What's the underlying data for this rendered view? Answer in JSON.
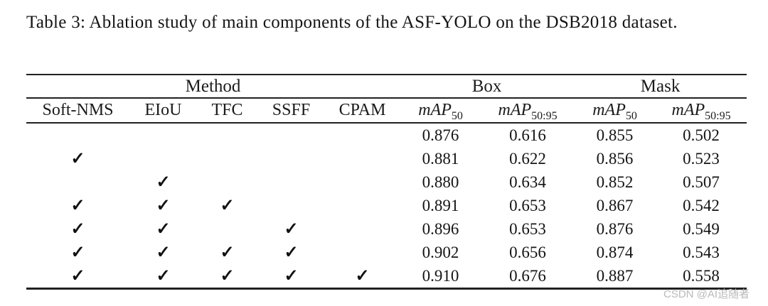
{
  "page": {
    "caption": "Table 3: Ablation study of main components of the ASF-YOLO on the DSB2018 dataset.",
    "watermark": "CSDN @AI追随者"
  },
  "table": {
    "group_headers": [
      {
        "label": "Method",
        "span": 5
      },
      {
        "label": "Box",
        "span": 2
      },
      {
        "label": "Mask",
        "span": 2
      }
    ],
    "method_columns": [
      "Soft-NMS",
      "EIoU",
      "TFC",
      "SSFF",
      "CPAM"
    ],
    "metric_headers": [
      {
        "base": "mAP",
        "sub": "50"
      },
      {
        "base": "mAP",
        "sub": "50:95"
      },
      {
        "base": "mAP",
        "sub": "50"
      },
      {
        "base": "mAP",
        "sub": "50:95"
      }
    ],
    "check_symbol": "✓",
    "rows": [
      {
        "checks": [
          false,
          false,
          false,
          false,
          false
        ],
        "values": [
          "0.876",
          "0.616",
          "0.855",
          "0.502"
        ]
      },
      {
        "checks": [
          true,
          false,
          false,
          false,
          false
        ],
        "values": [
          "0.881",
          "0.622",
          "0.856",
          "0.523"
        ]
      },
      {
        "checks": [
          false,
          true,
          false,
          false,
          false
        ],
        "values": [
          "0.880",
          "0.634",
          "0.852",
          "0.507"
        ]
      },
      {
        "checks": [
          true,
          true,
          true,
          false,
          false
        ],
        "values": [
          "0.891",
          "0.653",
          "0.867",
          "0.542"
        ]
      },
      {
        "checks": [
          true,
          true,
          false,
          true,
          false
        ],
        "values": [
          "0.896",
          "0.653",
          "0.876",
          "0.549"
        ]
      },
      {
        "checks": [
          true,
          true,
          true,
          true,
          false
        ],
        "values": [
          "0.902",
          "0.656",
          "0.874",
          "0.543"
        ]
      },
      {
        "checks": [
          true,
          true,
          true,
          true,
          true
        ],
        "values": [
          "0.910",
          "0.676",
          "0.887",
          "0.558"
        ]
      }
    ]
  },
  "colors": {
    "text": "#1b1b1b",
    "rule": "#212121",
    "watermark": "#b9b9b9",
    "background": "#ffffff"
  }
}
